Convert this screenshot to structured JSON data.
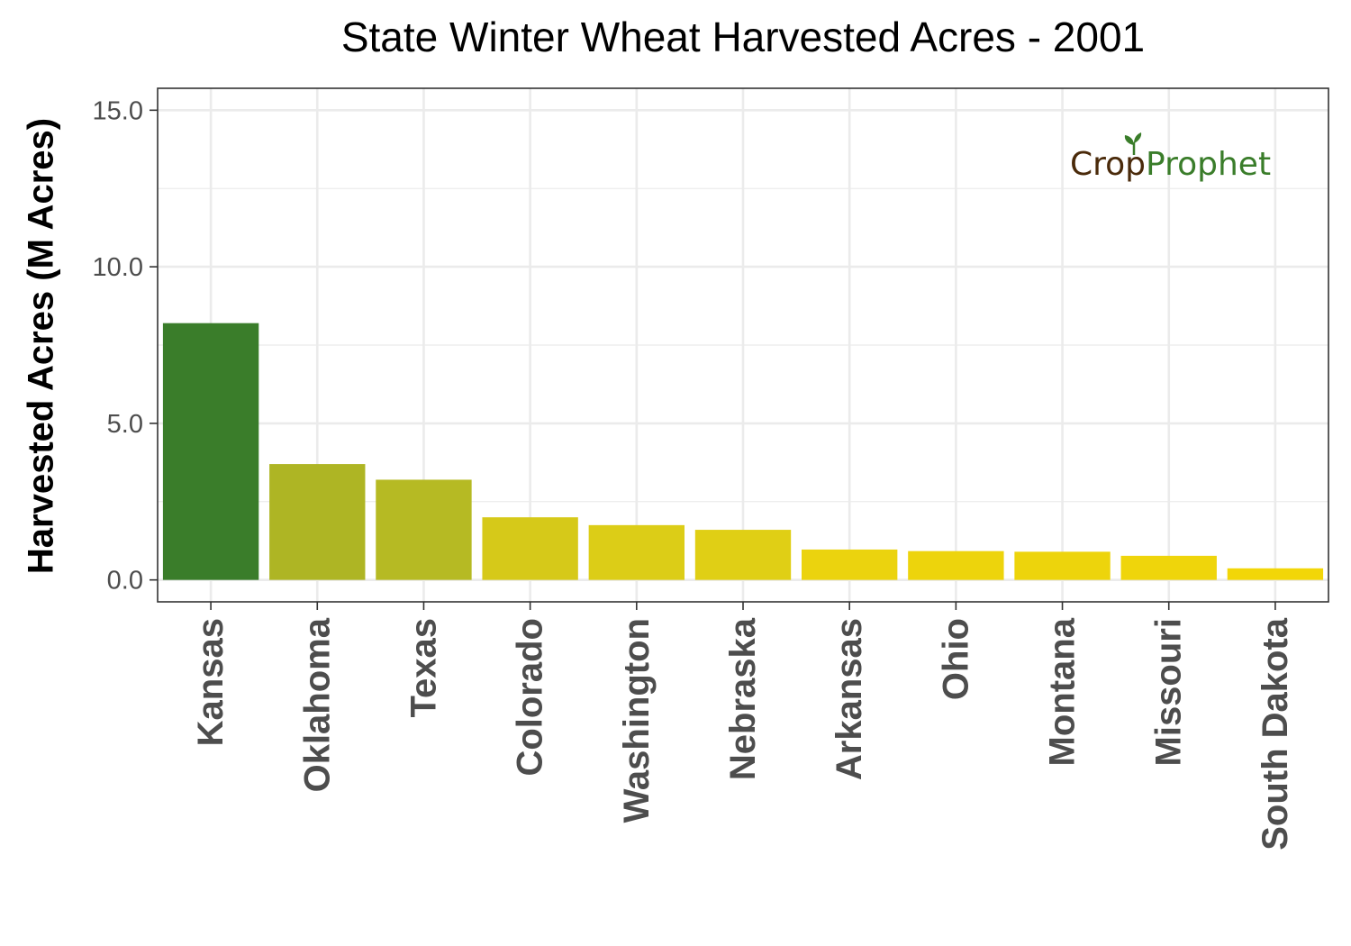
{
  "chart_data": {
    "type": "bar",
    "title": "State Winter Wheat Harvested Acres - 2001",
    "xlabel": "",
    "ylabel": "Harvested Acres (M Acres)",
    "ylim": [
      -0.7,
      15.7
    ],
    "yticks": [
      "0.0",
      "5.0",
      "10.0",
      "15.0"
    ],
    "ytick_values": [
      0,
      5,
      10,
      15
    ],
    "grid": true,
    "legend": "none",
    "categories": [
      "Kansas",
      "Oklahoma",
      "Texas",
      "Colorado",
      "Washington",
      "Nebraska",
      "Arkansas",
      "Ohio",
      "Montana",
      "Missouri",
      "South Dakota"
    ],
    "values": [
      8.2,
      3.7,
      3.2,
      2.0,
      1.75,
      1.6,
      0.97,
      0.92,
      0.9,
      0.77,
      0.37
    ],
    "colors": [
      "#3a7d2a",
      "#aeb524",
      "#b6ba23",
      "#d6c919",
      "#dccd17",
      "#e0cf15",
      "#ebd30e",
      "#edd40c",
      "#edd40c",
      "#efd50b",
      "#f2d608"
    ]
  },
  "logo": {
    "part1": "Crop",
    "part2": "Prophet",
    "color1": "#4a2a0a",
    "color2": "#3a7d2a"
  }
}
